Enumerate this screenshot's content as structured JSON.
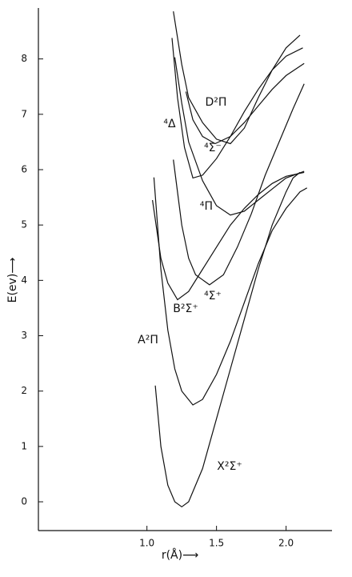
{
  "chart_data": {
    "type": "line",
    "xlabel": "r(Å)⟶",
    "ylabel": "E(ev)⟶",
    "xlim": [
      0.22,
      2.33
    ],
    "ylim": [
      -0.52,
      8.92
    ],
    "xticks": [
      {
        "value": 1.0,
        "label": "1.0"
      },
      {
        "value": 1.5,
        "label": "1.5"
      },
      {
        "value": 2.0,
        "label": "2.0"
      }
    ],
    "yticks": [
      0,
      1,
      2,
      3,
      4,
      5,
      6,
      7,
      8
    ],
    "color": "#111111",
    "series": [
      {
        "name": "X²Σ⁺",
        "x": [
          1.06,
          1.1,
          1.15,
          1.2,
          1.25,
          1.3,
          1.4,
          1.5,
          1.6,
          1.7,
          1.8,
          1.9,
          2.0,
          2.05,
          2.1
        ],
        "values": [
          2.1,
          1.0,
          0.3,
          0.0,
          -0.09,
          0.0,
          0.6,
          1.5,
          2.4,
          3.3,
          4.2,
          5.0,
          5.6,
          5.85,
          5.95
        ]
      },
      {
        "name": "A²Π",
        "x": [
          1.05,
          1.1,
          1.15,
          1.2,
          1.25,
          1.33,
          1.4,
          1.5,
          1.6,
          1.7,
          1.8,
          1.9,
          2.0,
          2.1,
          2.15
        ],
        "values": [
          5.86,
          4.2,
          3.1,
          2.4,
          2.0,
          1.75,
          1.85,
          2.3,
          2.9,
          3.6,
          4.3,
          4.9,
          5.3,
          5.6,
          5.67
        ]
      },
      {
        "name": "B²Σ⁺",
        "x": [
          1.04,
          1.1,
          1.15,
          1.22,
          1.3,
          1.4,
          1.5,
          1.6,
          1.7,
          1.8,
          1.9,
          2.0,
          2.13
        ],
        "values": [
          5.45,
          4.4,
          3.95,
          3.65,
          3.8,
          4.2,
          4.6,
          5.0,
          5.3,
          5.55,
          5.75,
          5.88,
          5.95
        ]
      },
      {
        "name": "⁴Σ⁺",
        "x": [
          1.19,
          1.25,
          1.3,
          1.35,
          1.45,
          1.55,
          1.65,
          1.75,
          1.85,
          1.95,
          2.05,
          2.13
        ],
        "values": [
          6.18,
          5.0,
          4.4,
          4.1,
          3.92,
          4.1,
          4.6,
          5.2,
          5.9,
          6.5,
          7.1,
          7.55
        ]
      },
      {
        "name": "⁴Π",
        "x": [
          1.2,
          1.25,
          1.3,
          1.4,
          1.5,
          1.6,
          1.7,
          1.8,
          1.9,
          2.0,
          2.13
        ],
        "values": [
          8.03,
          7.2,
          6.5,
          5.8,
          5.35,
          5.18,
          5.25,
          5.45,
          5.65,
          5.85,
          5.97
        ]
      },
      {
        "name": "⁴Δ",
        "x": [
          1.18,
          1.22,
          1.27,
          1.33,
          1.4,
          1.5,
          1.6,
          1.7,
          1.8,
          1.9,
          2.0,
          2.12
        ],
        "values": [
          8.38,
          7.3,
          6.4,
          5.85,
          5.9,
          6.2,
          6.6,
          7.05,
          7.45,
          7.8,
          8.05,
          8.2
        ]
      },
      {
        "name": "⁴Σ⁻",
        "x": [
          1.28,
          1.33,
          1.4,
          1.49,
          1.6,
          1.7,
          1.8,
          1.9,
          2.0,
          2.13
        ],
        "values": [
          7.41,
          6.9,
          6.6,
          6.47,
          6.6,
          6.85,
          7.15,
          7.45,
          7.7,
          7.92
        ]
      },
      {
        "name": "D²Π",
        "x": [
          1.19,
          1.25,
          1.3,
          1.4,
          1.5,
          1.6,
          1.7,
          1.8,
          1.9,
          2.0,
          2.1
        ],
        "values": [
          8.86,
          7.9,
          7.3,
          6.85,
          6.55,
          6.47,
          6.75,
          7.3,
          7.8,
          8.2,
          8.43
        ]
      }
    ]
  }
}
